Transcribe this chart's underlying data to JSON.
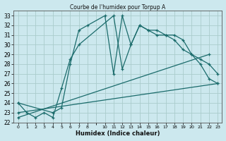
{
  "title": "Courbe de l'humidex pour Torpup A",
  "xlabel": "Humidex (Indice chaleur)",
  "bg_color": "#cce8ee",
  "grid_color": "#aacccc",
  "line_color": "#1a6b6b",
  "xlim": [
    -0.5,
    23.5
  ],
  "ylim": [
    22,
    33.5
  ],
  "xtick_vals": [
    0,
    1,
    2,
    3,
    4,
    5,
    6,
    7,
    8,
    10,
    11,
    12,
    13,
    14,
    15,
    16,
    17,
    18,
    19,
    20,
    21,
    22,
    23
  ],
  "ytick_vals": [
    22,
    23,
    24,
    25,
    26,
    27,
    28,
    29,
    30,
    31,
    32,
    33
  ],
  "series": [
    {
      "x": [
        0,
        1,
        2,
        3,
        4,
        5,
        6,
        7,
        11,
        12,
        13,
        14,
        15,
        16,
        17,
        18,
        19,
        20,
        21,
        22,
        23
      ],
      "y": [
        24,
        23,
        22.5,
        23,
        22.5,
        25.5,
        28.5,
        30,
        33,
        27.5,
        30,
        32,
        31.5,
        31,
        31,
        30.5,
        29.5,
        29,
        28,
        26.5,
        26
      ]
    },
    {
      "x": [
        0,
        4,
        5,
        6,
        7,
        8,
        10,
        11,
        12,
        13,
        14,
        15,
        16,
        17,
        18,
        19,
        20,
        21,
        22,
        23
      ],
      "y": [
        24,
        23,
        23.5,
        28,
        31.5,
        32,
        33,
        27,
        33,
        30,
        32,
        31.5,
        31.5,
        31,
        31,
        30.5,
        29,
        28.5,
        28,
        27
      ]
    },
    {
      "x": [
        0,
        23
      ],
      "y": [
        23,
        26
      ]
    },
    {
      "x": [
        0,
        22
      ],
      "y": [
        22.5,
        29
      ]
    }
  ]
}
